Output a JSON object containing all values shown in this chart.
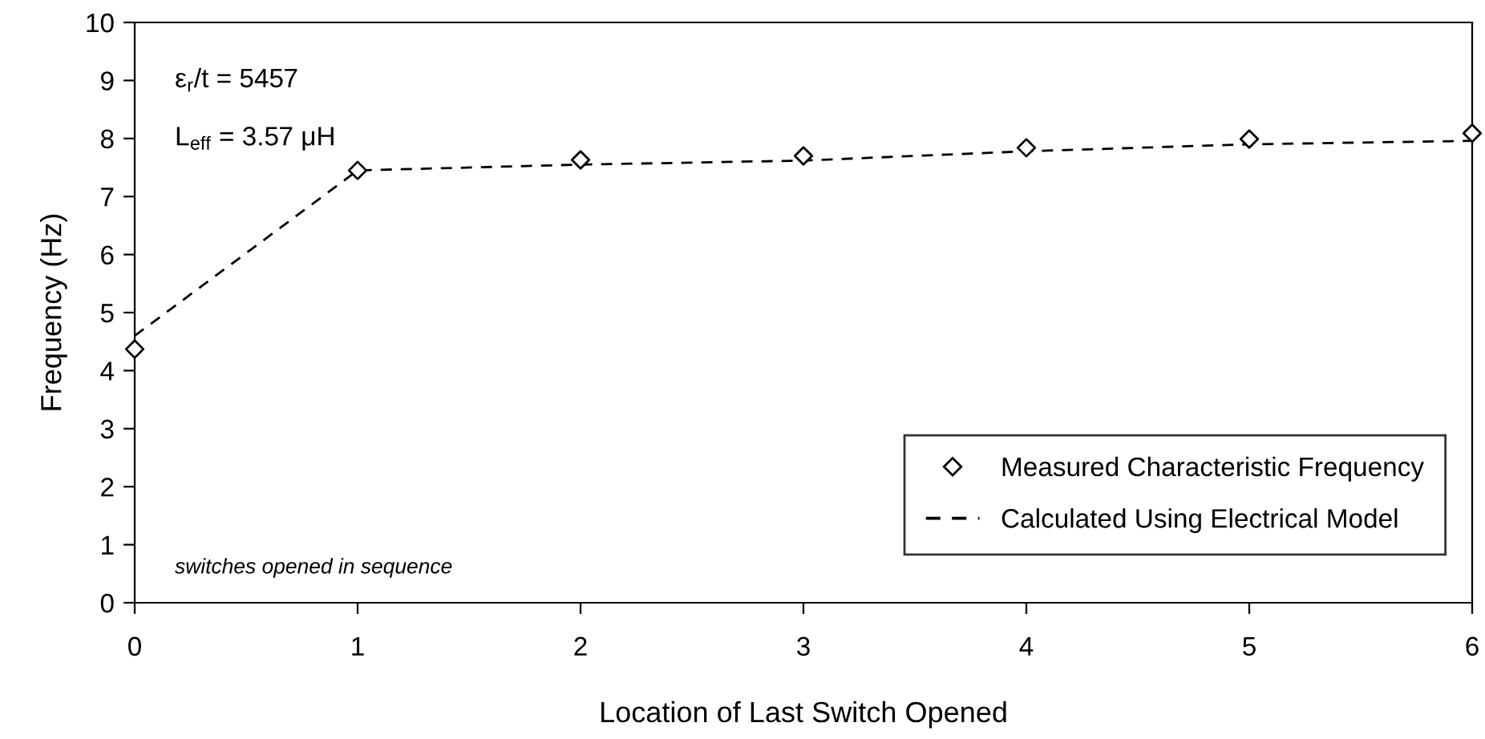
{
  "chart_data": {
    "type": "line",
    "xlabel": "Location of Last Switch Opened",
    "ylabel": "Frequency (Hz)",
    "x": [
      0,
      1,
      2,
      3,
      4,
      5,
      6
    ],
    "series": [
      {
        "name": "Measured Characteristic Frequency",
        "type": "scatter",
        "color": "#000000",
        "marker": "diamond",
        "values": [
          4.37,
          7.45,
          7.63,
          7.7,
          7.84,
          7.99,
          8.09
        ]
      },
      {
        "name": "Calculated Using Electrical Model",
        "color": "#000000",
        "line_style": "dashed",
        "marker": "none",
        "values": [
          4.6,
          7.45,
          7.55,
          7.62,
          7.78,
          7.9,
          7.96
        ]
      }
    ],
    "xlim": [
      0,
      6
    ],
    "xticks": [
      0,
      1,
      2,
      3,
      4,
      5,
      6
    ],
    "ylim": [
      0,
      10
    ],
    "yticks": [
      0,
      1,
      2,
      3,
      4,
      5,
      6,
      7,
      8,
      9,
      10
    ],
    "annotations": [
      "ε$_{r}$/t = 5457",
      "L$_{eff}$ = 3.57 μH",
      "switches opened in sequence"
    ],
    "grid": false,
    "legend": "bottom right"
  }
}
